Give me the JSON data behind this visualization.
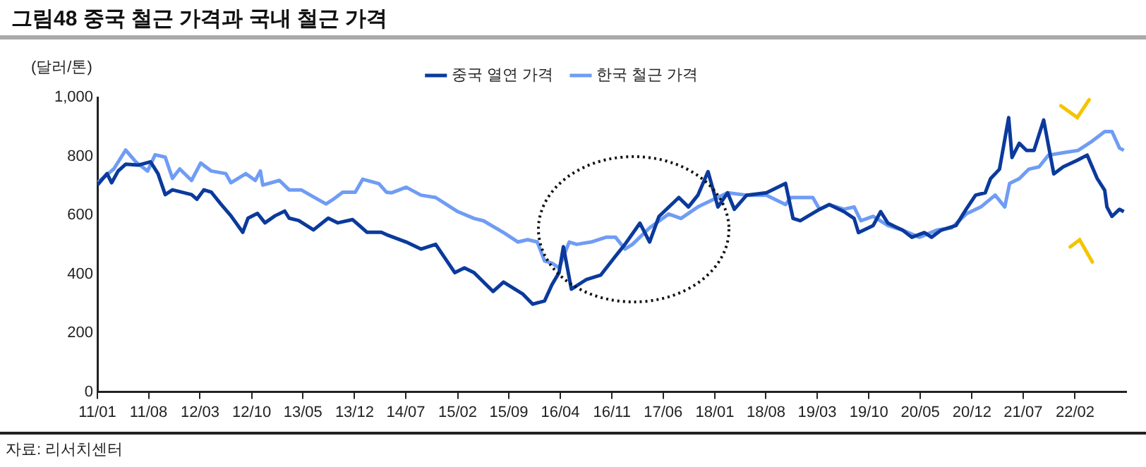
{
  "chart_data": {
    "type": "line",
    "title": "그림48 중국 철근 가격과 국내 철근 가격",
    "ylabel": "(달러/톤)",
    "annotations": [
      "자료: 리서치센터"
    ],
    "legend": "top",
    "line_style": "solid",
    "xlim": [
      "2011-01-01",
      "2022-09-01"
    ],
    "xticks": [
      {
        "value": "2011-01",
        "label": "11/01"
      },
      {
        "value": "2011-08",
        "label": "11/08"
      },
      {
        "value": "2012-03",
        "label": "12/03"
      },
      {
        "value": "2012-10",
        "label": "12/10"
      },
      {
        "value": "2013-05",
        "label": "13/05"
      },
      {
        "value": "2013-12",
        "label": "13/12"
      },
      {
        "value": "2014-07",
        "label": "14/07"
      },
      {
        "value": "2015-02",
        "label": "15/02"
      },
      {
        "value": "2015-09",
        "label": "15/09"
      },
      {
        "value": "2016-04",
        "label": "16/04"
      },
      {
        "value": "2016-11",
        "label": "16/11"
      },
      {
        "value": "2017-06",
        "label": "17/06"
      },
      {
        "value": "2018-01",
        "label": "18/01"
      },
      {
        "value": "2018-08",
        "label": "18/08"
      },
      {
        "value": "2019-03",
        "label": "19/03"
      },
      {
        "value": "2019-10",
        "label": "19/10"
      },
      {
        "value": "2020-05",
        "label": "20/05"
      },
      {
        "value": "2020-12",
        "label": "20/12"
      },
      {
        "value": "2021-07",
        "label": "21/07"
      },
      {
        "value": "2022-02",
        "label": "22/02"
      }
    ],
    "ylim": [
      0,
      1000
    ],
    "yticks": [
      0,
      200,
      400,
      600,
      800,
      {
        "value": 1000,
        "label": "1,000"
      }
    ],
    "series": [
      {
        "name": "중국 열연 가격",
        "color": "#0b3a9c",
        "x": [
          "2011-01-01",
          "2011-02-10",
          "2011-03-01",
          "2011-03-28",
          "2011-04-28",
          "2011-06-19",
          "2011-08-09",
          "2011-09-09",
          "2011-10-09",
          "2011-11-08",
          "2012-01-26",
          "2012-02-17",
          "2012-03-17",
          "2012-04-17",
          "2012-05-26",
          "2012-07-07",
          "2012-08-25",
          "2012-09-16",
          "2012-10-25",
          "2012-11-25",
          "2013-01-06",
          "2013-02-15",
          "2013-03-05",
          "2013-04-14",
          "2013-06-14",
          "2013-08-14",
          "2013-09-23",
          "2013-11-23",
          "2014-01-22",
          "2014-03-22",
          "2014-04-12",
          "2014-07-03",
          "2014-09-02",
          "2014-11-02",
          "2015-01-20",
          "2015-03-01",
          "2015-04-10",
          "2015-06-28",
          "2015-08-10",
          "2015-10-28",
          "2015-12-09",
          "2016-01-27",
          "2016-02-27",
          "2016-03-27",
          "2016-04-14",
          "2016-05-17",
          "2016-07-17",
          "2016-09-16",
          "2016-11-16",
          "2016-12-25",
          "2017-02-25",
          "2017-04-06",
          "2017-05-15",
          "2017-08-05",
          "2017-09-14",
          "2017-10-23",
          "2017-12-04",
          "2018-01-14",
          "2018-02-23",
          "2018-03-23",
          "2018-05-13",
          "2018-08-03",
          "2018-10-21",
          "2018-11-21",
          "2018-12-21",
          "2019-03-11",
          "2019-04-20",
          "2019-06-20",
          "2019-08-01",
          "2019-08-19",
          "2019-10-19",
          "2019-11-19",
          "2019-12-19",
          "2020-02-18",
          "2020-03-27",
          "2020-05-18",
          "2020-06-17",
          "2020-07-26",
          "2020-09-26",
          "2020-11-07",
          "2020-12-16",
          "2021-01-25",
          "2021-02-16",
          "2021-03-25",
          "2021-05-02",
          "2021-05-16",
          "2021-06-15",
          "2021-07-15",
          "2021-08-15",
          "2021-09-24",
          "2021-11-05",
          "2021-12-14",
          "2022-02-14",
          "2022-03-23",
          "2022-05-04",
          "2022-06-04",
          "2022-06-13",
          "2022-07-04",
          "2022-08-04",
          "2022-08-22"
        ],
        "values": [
          702,
          741,
          710,
          750,
          773,
          770,
          781,
          741,
          670,
          686,
          670,
          654,
          686,
          678,
          638,
          598,
          542,
          590,
          606,
          574,
          598,
          614,
          590,
          582,
          550,
          590,
          574,
          585,
          542,
          542,
          534,
          509,
          485,
          501,
          405,
          421,
          405,
          341,
          373,
          333,
          298,
          309,
          365,
          405,
          493,
          349,
          381,
          397,
          461,
          501,
          573,
          509,
          596,
          660,
          628,
          668,
          748,
          628,
          676,
          620,
          668,
          676,
          708,
          589,
          581,
          620,
          636,
          612,
          589,
          541,
          565,
          612,
          573,
          549,
          525,
          541,
          525,
          549,
          565,
          620,
          668,
          676,
          724,
          756,
          931,
          796,
          844,
          820,
          820,
          923,
          740,
          764,
          788,
          804,
          724,
          684,
          628,
          596,
          620,
          612
        ]
      },
      {
        "name": "한국 철근 가격",
        "color": "#6f9cf4",
        "x": [
          "2011-01-01",
          "2011-03-10",
          "2011-04-28",
          "2011-06-09",
          "2011-07-28",
          "2011-08-28",
          "2011-10-09",
          "2011-11-08",
          "2011-12-08",
          "2012-01-26",
          "2012-03-04",
          "2012-04-17",
          "2012-06-16",
          "2012-07-07",
          "2012-09-07",
          "2012-10-16",
          "2012-11-06",
          "2012-11-16",
          "2013-01-24",
          "2013-03-05",
          "2013-04-24",
          "2013-06-14",
          "2013-08-05",
          "2013-09-04",
          "2013-10-13",
          "2013-12-04",
          "2014-01-04",
          "2014-03-12",
          "2014-04-12",
          "2014-05-03",
          "2014-07-03",
          "2014-09-02",
          "2014-11-02",
          "2015-01-02",
          "2015-02-02",
          "2015-04-10",
          "2015-05-19",
          "2015-08-10",
          "2015-10-09",
          "2015-11-18",
          "2015-12-28",
          "2016-01-27",
          "2016-02-27",
          "2016-03-27",
          "2016-05-08",
          "2016-06-08",
          "2016-08-07",
          "2016-10-07",
          "2016-11-16",
          "2016-12-25",
          "2017-01-25",
          "2017-04-06",
          "2017-06-24",
          "2017-08-14",
          "2017-10-23",
          "2017-12-23",
          "2018-02-23",
          "2018-05-13",
          "2018-08-03",
          "2018-10-21",
          "2018-11-12",
          "2019-02-11",
          "2019-03-11",
          "2019-04-20",
          "2019-06-20",
          "2019-08-01",
          "2019-08-29",
          "2019-10-19",
          "2019-12-19",
          "2020-02-18",
          "2020-04-27",
          "2020-07-08",
          "2020-09-08",
          "2020-11-07",
          "2021-01-07",
          "2021-03-07",
          "2021-04-16",
          "2021-05-06",
          "2021-06-15",
          "2021-07-24",
          "2021-09-05",
          "2021-10-14",
          "2021-12-14",
          "2022-02-14",
          "2022-04-14",
          "2022-06-04",
          "2022-07-04",
          "2022-08-04",
          "2022-08-22"
        ],
        "values": [
          710,
          757,
          821,
          781,
          750,
          805,
          797,
          725,
          757,
          718,
          777,
          750,
          741,
          710,
          741,
          718,
          750,
          702,
          718,
          686,
          686,
          662,
          638,
          654,
          678,
          678,
          722,
          707,
          678,
          676,
          695,
          668,
          660,
          628,
          612,
          589,
          581,
          541,
          509,
          517,
          509,
          445,
          437,
          421,
          509,
          501,
          509,
          525,
          525,
          485,
          501,
          557,
          604,
          589,
          628,
          652,
          676,
          668,
          668,
          636,
          660,
          660,
          620,
          636,
          620,
          628,
          581,
          596,
          565,
          549,
          525,
          549,
          557,
          604,
          628,
          668,
          628,
          708,
          724,
          756,
          764,
          804,
          812,
          820,
          852,
          884,
          884,
          828,
          820
        ]
      }
    ]
  }
}
